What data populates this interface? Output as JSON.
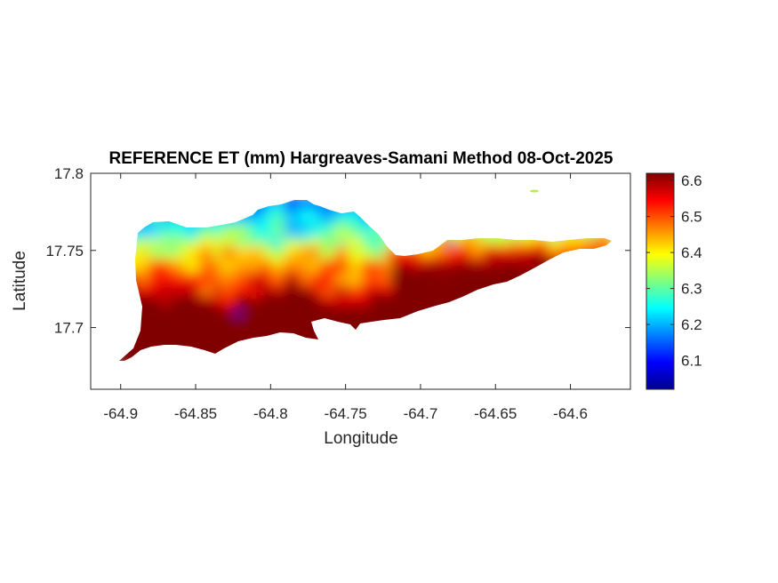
{
  "chart_data": {
    "type": "heatmap",
    "title": "REFERENCE ET (mm) Hargreaves-Samani Method  08-Oct-2025",
    "xlabel": "Longitude",
    "ylabel": "Latitude",
    "xlim": [
      -64.92,
      -64.56
    ],
    "ylim": [
      17.66,
      17.8
    ],
    "x_ticks": [
      -64.9,
      -64.85,
      -64.8,
      -64.75,
      -64.7,
      -64.65,
      -64.6
    ],
    "x_tick_labels": [
      "-64.9",
      "-64.85",
      "-64.8",
      "-64.75",
      "-64.7",
      "-64.65",
      "-64.6"
    ],
    "y_ticks": [
      17.7,
      17.75,
      17.8
    ],
    "y_tick_labels": [
      "17.7",
      "17.75",
      "17.8"
    ],
    "colormap": "jet",
    "colorbar": {
      "range": [
        6.02,
        6.62
      ],
      "ticks": [
        6.1,
        6.2,
        6.3,
        6.4,
        6.5,
        6.6
      ],
      "tick_labels": [
        "6.1",
        "6.2",
        "6.3",
        "6.4",
        "6.5",
        "6.6"
      ],
      "location": "right"
    },
    "grid": false,
    "pattern": "values highest (about 6.5–6.6 mm) along the south coast, lowest (about 6.2–6.3 mm) over the northern interior, with isolated minima near 6.05 mm"
  }
}
